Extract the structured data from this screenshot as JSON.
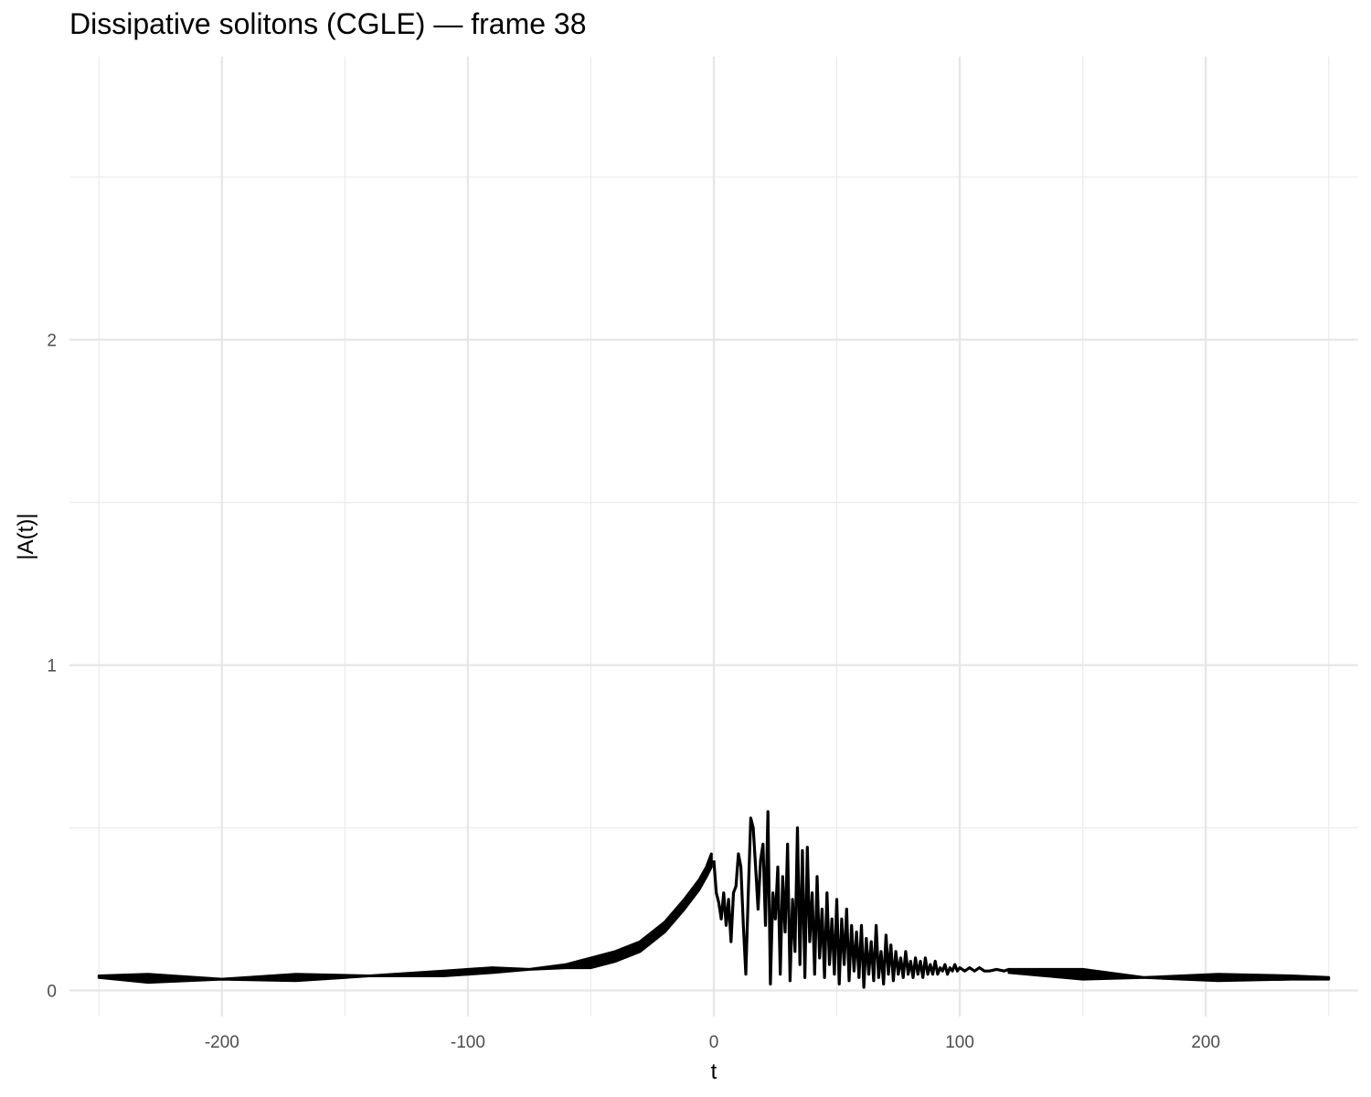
{
  "chart_data": {
    "type": "line",
    "title": "Dissipative solitons (CGLE) — frame 38",
    "xlabel": "t",
    "ylabel": "|A(t)|",
    "xlim": [
      -262,
      262
    ],
    "ylim": [
      -0.08,
      2.87
    ],
    "x_ticks": [
      -200,
      -100,
      0,
      100,
      200
    ],
    "x_tick_labels": [
      "-200",
      "-100",
      "0",
      "100",
      "200"
    ],
    "y_ticks": [
      0,
      1,
      2
    ],
    "y_tick_labels": [
      "0",
      "1",
      "2"
    ],
    "grid": true,
    "legend": "none",
    "line_color": "#000000",
    "series": [
      {
        "envelope_upper": {
          "x": [
            -250,
            -230,
            -200,
            -170,
            -140,
            -110,
            -90,
            -75,
            -60,
            -50,
            -40,
            -30,
            -20,
            -12,
            -6,
            -3,
            -1
          ],
          "y": [
            0.045,
            0.05,
            0.035,
            0.05,
            0.045,
            0.06,
            0.07,
            0.065,
            0.08,
            0.1,
            0.12,
            0.15,
            0.21,
            0.28,
            0.34,
            0.38,
            0.42
          ]
        },
        "envelope_lower": {
          "x": [
            -250,
            -230,
            -200,
            -170,
            -140,
            -110,
            -90,
            -75,
            -60,
            -50,
            -40,
            -30,
            -20,
            -12,
            -6,
            -3,
            -1
          ],
          "y": [
            0.04,
            0.025,
            0.035,
            0.03,
            0.045,
            0.045,
            0.055,
            0.065,
            0.07,
            0.07,
            0.09,
            0.12,
            0.18,
            0.25,
            0.31,
            0.35,
            0.38
          ]
        },
        "core": {
          "x": [
            0,
            1,
            2,
            3,
            4,
            5,
            6,
            7,
            8,
            9,
            10,
            11,
            12,
            13,
            14,
            15,
            16,
            17,
            18,
            19,
            20,
            21,
            22,
            23,
            24,
            25,
            26,
            27,
            28,
            29,
            30,
            31,
            32,
            33,
            34,
            35,
            36,
            37,
            38,
            39,
            40,
            41,
            42,
            43,
            44,
            45,
            46,
            47,
            48,
            49,
            50,
            51,
            52,
            53,
            54,
            55,
            56,
            57,
            58,
            59,
            60,
            61,
            62,
            63,
            64,
            65,
            66,
            67,
            68,
            69,
            70,
            71,
            72,
            73,
            74,
            75,
            76,
            77,
            78,
            79,
            80,
            81,
            82,
            83,
            84,
            85,
            86,
            87,
            88,
            89,
            90,
            91,
            92,
            93,
            94,
            95,
            96,
            97,
            98,
            99,
            100,
            102,
            104,
            106,
            108,
            110,
            112,
            115,
            118,
            120
          ],
          "y": [
            0.4,
            0.3,
            0.27,
            0.22,
            0.3,
            0.2,
            0.28,
            0.15,
            0.3,
            0.32,
            0.42,
            0.38,
            0.2,
            0.05,
            0.3,
            0.53,
            0.5,
            0.38,
            0.25,
            0.4,
            0.45,
            0.2,
            0.55,
            0.02,
            0.3,
            0.22,
            0.38,
            0.05,
            0.35,
            0.18,
            0.45,
            0.03,
            0.28,
            0.12,
            0.5,
            0.08,
            0.43,
            0.04,
            0.44,
            0.15,
            0.3,
            0.05,
            0.35,
            0.1,
            0.25,
            0.04,
            0.3,
            0.08,
            0.22,
            0.05,
            0.28,
            0.02,
            0.22,
            0.08,
            0.25,
            0.03,
            0.2,
            0.06,
            0.18,
            0.04,
            0.2,
            0.01,
            0.16,
            0.05,
            0.15,
            0.03,
            0.2,
            0.04,
            0.12,
            0.02,
            0.17,
            0.05,
            0.14,
            0.03,
            0.12,
            0.05,
            0.1,
            0.04,
            0.12,
            0.05,
            0.09,
            0.04,
            0.1,
            0.05,
            0.09,
            0.04,
            0.1,
            0.05,
            0.08,
            0.05,
            0.09,
            0.05,
            0.07,
            0.06,
            0.08,
            0.05,
            0.07,
            0.06,
            0.08,
            0.06,
            0.07,
            0.06,
            0.07,
            0.06,
            0.07,
            0.06,
            0.06,
            0.065,
            0.06,
            0.065
          ]
        },
        "tail_upper": {
          "x": [
            120,
            150,
            175,
            205,
            235,
            250
          ],
          "y": [
            0.065,
            0.065,
            0.04,
            0.05,
            0.045,
            0.04
          ]
        },
        "tail_lower": {
          "x": [
            120,
            150,
            175,
            205,
            235,
            250
          ],
          "y": [
            0.055,
            0.035,
            0.04,
            0.03,
            0.035,
            0.035
          ]
        }
      }
    ]
  }
}
